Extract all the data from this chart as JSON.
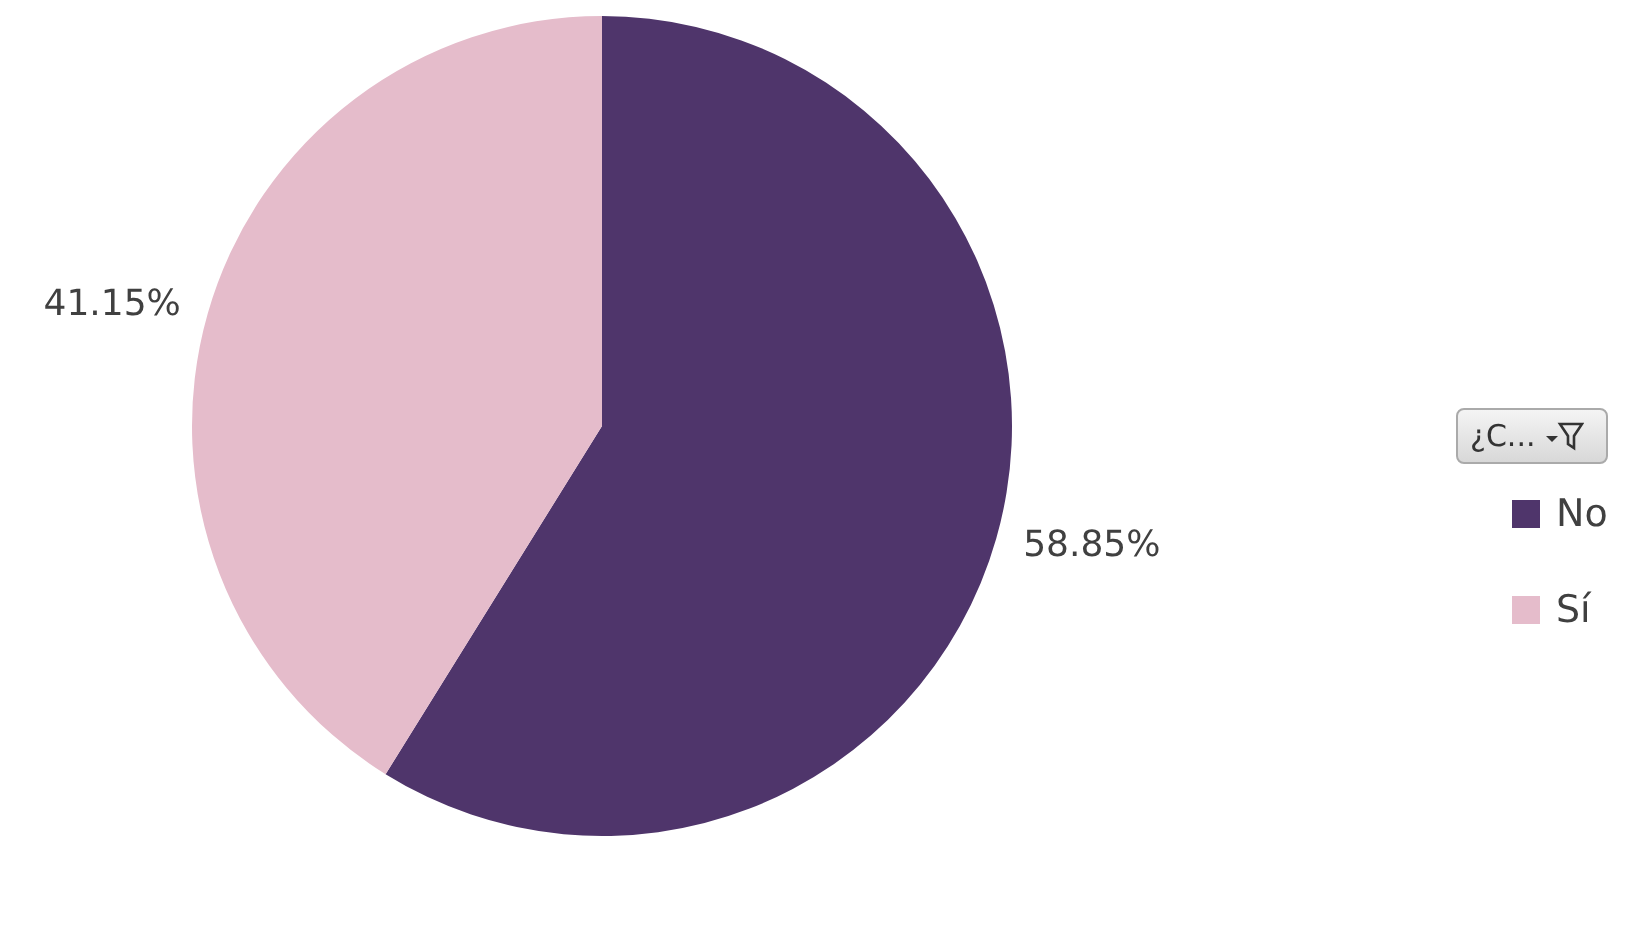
{
  "chart_data": {
    "type": "pie",
    "legend_title": "¿C...",
    "categories": [
      "No",
      "Sí"
    ],
    "values": [
      58.85,
      41.15
    ],
    "colors": [
      "#4f356b",
      "#e5bccb"
    ],
    "value_labels": [
      "58.85%",
      "41.15%"
    ],
    "legend": "right"
  }
}
